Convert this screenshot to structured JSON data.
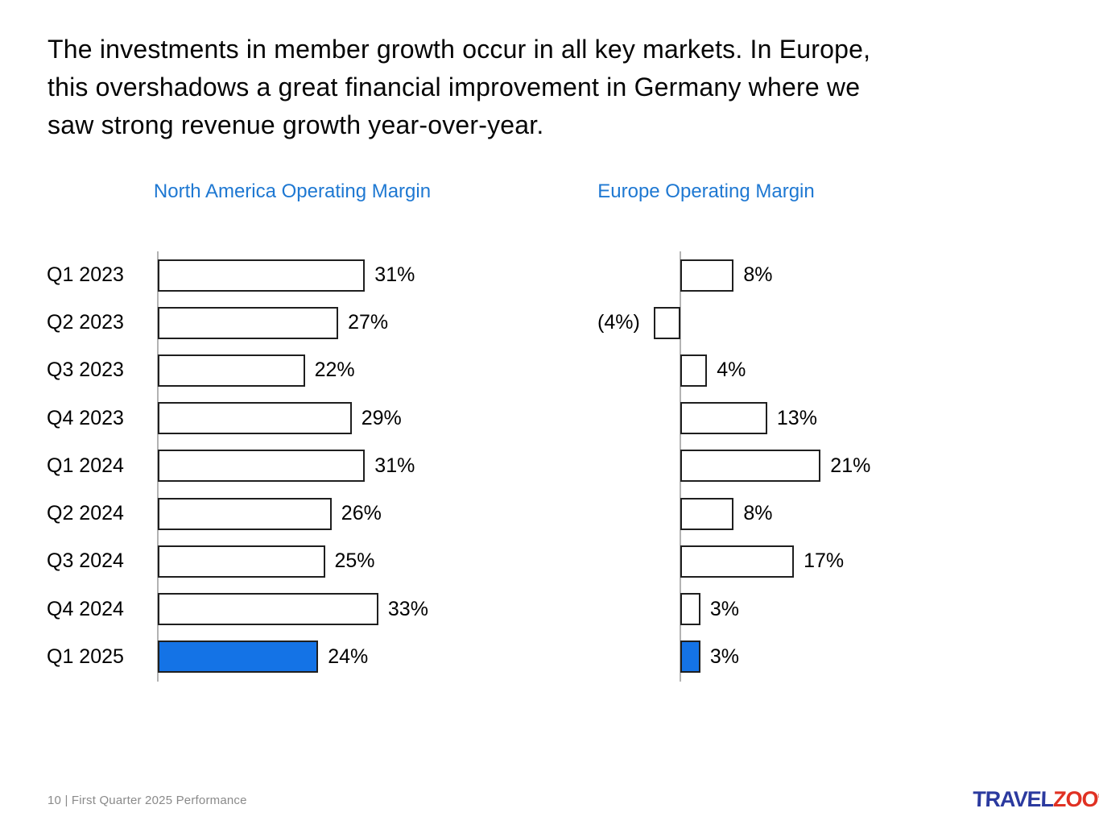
{
  "slide": {
    "title_lines": [
      "The investments in member growth occur in all key markets. In Europe,",
      "this overshadows a great financial improvement in Germany where we",
      "saw strong revenue growth year-over-year."
    ],
    "footer_text": "10 | First Quarter 2025 Performance",
    "logo": {
      "blue_text": "TRAVEL",
      "red_text": "ZOO",
      "registered_mark": "®"
    }
  },
  "colors": {
    "chart_title_blue": "#1E78D2",
    "highlight_bar_blue": "#1473E6",
    "bar_fill_white": "#FFFFFF",
    "bar_border_black": "#1F1F1F",
    "axis_line_gray": "#B3B3B3",
    "footer_gray": "#8A8A8A",
    "logo_blue": "#2B3A9F",
    "logo_red": "#E03123"
  },
  "chart_data": [
    {
      "type": "bar",
      "orientation": "horizontal",
      "title": "North America Operating Margin",
      "categories": [
        "Q1 2023",
        "Q2 2023",
        "Q3 2023",
        "Q4 2023",
        "Q1 2024",
        "Q2 2024",
        "Q3 2024",
        "Q4 2024",
        "Q1 2025"
      ],
      "values": [
        31,
        27,
        22,
        29,
        31,
        26,
        25,
        33,
        24
      ],
      "value_labels": [
        "31%",
        "27%",
        "22%",
        "29%",
        "31%",
        "26%",
        "25%",
        "33%",
        "24%"
      ],
      "unit": "percent",
      "highlight_index": 8,
      "show_category_labels": true,
      "axis_range": [
        0,
        40
      ],
      "grid": false,
      "legend": false
    },
    {
      "type": "bar",
      "orientation": "horizontal",
      "title": "Europe Operating Margin",
      "categories": [
        "Q1 2023",
        "Q2 2023",
        "Q3 2023",
        "Q4 2023",
        "Q1 2024",
        "Q2 2024",
        "Q3 2024",
        "Q4 2024",
        "Q1 2025"
      ],
      "values": [
        8,
        -4,
        4,
        13,
        21,
        8,
        17,
        3,
        3
      ],
      "value_labels": [
        "8%",
        "(4%)",
        "4%",
        "13%",
        "21%",
        "8%",
        "17%",
        "3%",
        "3%"
      ],
      "unit": "percent",
      "highlight_index": 8,
      "show_category_labels": false,
      "axis_range": [
        -8,
        40
      ],
      "grid": false,
      "legend": false
    }
  ]
}
